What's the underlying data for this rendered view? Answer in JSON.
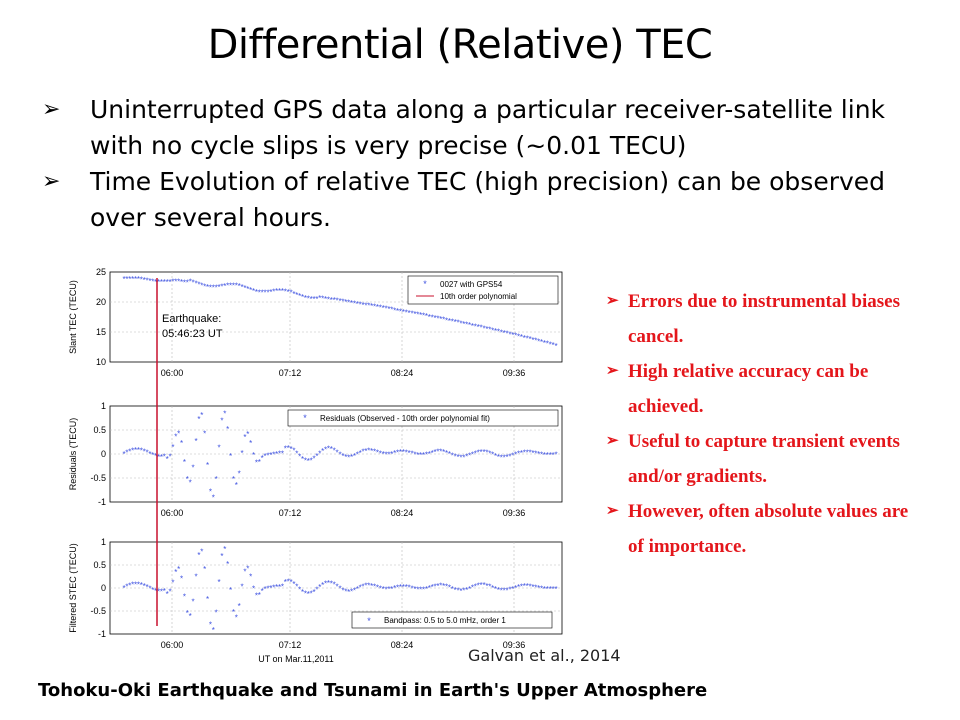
{
  "slide": {
    "title": "Differential (Relative) TEC",
    "bullets": [
      "Uninterrupted GPS data along a particular receiver-satellite link with no cycle slips is very precise (~0.01 TECU)",
      "Time Evolution of relative TEC (high precision) can be observed over several hours."
    ],
    "side_notes": [
      "Errors due to instrumental biases cancel.",
      "High relative accuracy can be achieved.",
      "Useful to capture transient events and/or gradients.",
      "However, often absolute values are of importance."
    ],
    "bullet_glyph": "➢",
    "citation": "Galvan et al., 2014",
    "footer": "Tohoku-Oki Earthquake and Tsunami in Earth's Upper Atmosphere",
    "accent_color": "#e4161b"
  },
  "chart_data": [
    {
      "type": "scatter",
      "ylabel": "Slant TEC (TECU)",
      "ylim": [
        10,
        25
      ],
      "yticks": [
        "25",
        "20",
        "15",
        "10"
      ],
      "xticks": [
        "06:00",
        "07:12",
        "08:24",
        "09:36"
      ],
      "legend": [
        "0027 with GPS54",
        "10th order polynomial"
      ],
      "legend_position": "top-right",
      "annotation": [
        "Earthquake:",
        "05:46:23 UT"
      ],
      "series_color": "#3b4fe0",
      "fit_color": "#c8102e"
    },
    {
      "type": "scatter",
      "ylabel": "Residuals (TECU)",
      "ylim": [
        -1,
        1
      ],
      "yticks": [
        "1",
        "0.5",
        "0",
        "-0.5",
        "-1"
      ],
      "xticks": [
        "06:00",
        "07:12",
        "08:24",
        "09:36"
      ],
      "legend": [
        "Residuals (Observed - 10th order polynomial fit)"
      ],
      "legend_position": "top-right",
      "series_color": "#3b4fe0"
    },
    {
      "type": "scatter",
      "ylabel": "Filtered STEC (TECU)",
      "ylim": [
        -1,
        1
      ],
      "yticks": [
        "1",
        "0.5",
        "0",
        "-0.5",
        "-1"
      ],
      "xticks": [
        "06:00",
        "07:12",
        "08:24",
        "09:36"
      ],
      "xlabel": "UT on Mar.11,2011",
      "legend": [
        "Bandpass: 0.5 to 5.0 mHz, order 1"
      ],
      "legend_position": "bottom-right",
      "series_color": "#3b4fe0"
    }
  ]
}
